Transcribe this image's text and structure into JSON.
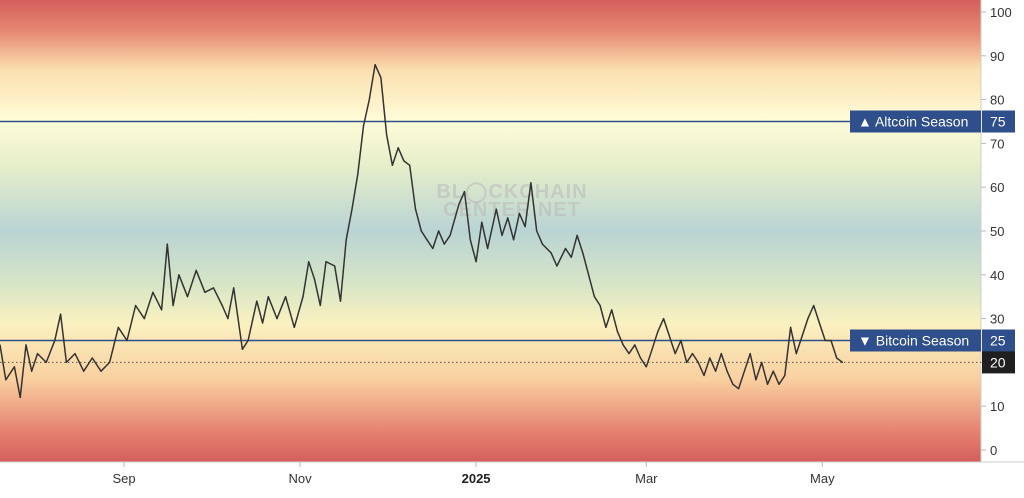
{
  "chart_data": {
    "type": "line",
    "title": "",
    "xlabel": "",
    "ylabel": "",
    "ylim": [
      0,
      100
    ],
    "y_ticks": [
      0,
      10,
      20,
      30,
      40,
      50,
      60,
      70,
      80,
      90,
      100
    ],
    "x_ticks": [
      {
        "label": "Sep",
        "bold": false
      },
      {
        "label": "Nov",
        "bold": false
      },
      {
        "label": "2025",
        "bold": true
      },
      {
        "label": "Mar",
        "bold": false
      },
      {
        "label": "May",
        "bold": false
      }
    ],
    "x_range": [
      "2024-07-20",
      "2025-06-25"
    ],
    "grid": false,
    "background": "rainbow gradient: red at 0 and 100, green near 45-50",
    "series": [
      {
        "color": "#333333",
        "points": [
          [
            "2024-07-20",
            24
          ],
          [
            "2024-07-22",
            16
          ],
          [
            "2024-07-25",
            19
          ],
          [
            "2024-07-27",
            12
          ],
          [
            "2024-07-29",
            24
          ],
          [
            "2024-07-31",
            18
          ],
          [
            "2024-08-02",
            22
          ],
          [
            "2024-08-05",
            20
          ],
          [
            "2024-08-08",
            25
          ],
          [
            "2024-08-10",
            31
          ],
          [
            "2024-08-12",
            20
          ],
          [
            "2024-08-15",
            22
          ],
          [
            "2024-08-18",
            18
          ],
          [
            "2024-08-21",
            21
          ],
          [
            "2024-08-24",
            18
          ],
          [
            "2024-08-27",
            20
          ],
          [
            "2024-08-30",
            28
          ],
          [
            "2024-09-02",
            25
          ],
          [
            "2024-09-05",
            33
          ],
          [
            "2024-09-08",
            30
          ],
          [
            "2024-09-11",
            36
          ],
          [
            "2024-09-14",
            32
          ],
          [
            "2024-09-16",
            47
          ],
          [
            "2024-09-18",
            33
          ],
          [
            "2024-09-20",
            40
          ],
          [
            "2024-09-23",
            35
          ],
          [
            "2024-09-26",
            41
          ],
          [
            "2024-09-29",
            36
          ],
          [
            "2024-10-02",
            37
          ],
          [
            "2024-10-05",
            33
          ],
          [
            "2024-10-07",
            30
          ],
          [
            "2024-10-09",
            37
          ],
          [
            "2024-10-12",
            23
          ],
          [
            "2024-10-14",
            25
          ],
          [
            "2024-10-17",
            34
          ],
          [
            "2024-10-19",
            29
          ],
          [
            "2024-10-21",
            35
          ],
          [
            "2024-10-24",
            30
          ],
          [
            "2024-10-27",
            35
          ],
          [
            "2024-10-30",
            28
          ],
          [
            "2024-11-02",
            35
          ],
          [
            "2024-11-04",
            43
          ],
          [
            "2024-11-06",
            39
          ],
          [
            "2024-11-08",
            33
          ],
          [
            "2024-11-10",
            43
          ],
          [
            "2024-11-13",
            42
          ],
          [
            "2024-11-15",
            34
          ],
          [
            "2024-11-17",
            48
          ],
          [
            "2024-11-19",
            55
          ],
          [
            "2024-11-21",
            63
          ],
          [
            "2024-11-23",
            74
          ],
          [
            "2024-11-25",
            80
          ],
          [
            "2024-11-27",
            88
          ],
          [
            "2024-11-29",
            85
          ],
          [
            "2024-12-01",
            72
          ],
          [
            "2024-12-03",
            65
          ],
          [
            "2024-12-05",
            69
          ],
          [
            "2024-12-07",
            66
          ],
          [
            "2024-12-09",
            65
          ],
          [
            "2024-12-11",
            55
          ],
          [
            "2024-12-13",
            50
          ],
          [
            "2024-12-15",
            48
          ],
          [
            "2024-12-17",
            46
          ],
          [
            "2024-12-19",
            50
          ],
          [
            "2024-12-21",
            47
          ],
          [
            "2024-12-23",
            49
          ],
          [
            "2024-12-26",
            56
          ],
          [
            "2024-12-28",
            59
          ],
          [
            "2024-12-30",
            48
          ],
          [
            "2025-01-01",
            43
          ],
          [
            "2025-01-03",
            52
          ],
          [
            "2025-01-05",
            46
          ],
          [
            "2025-01-08",
            55
          ],
          [
            "2025-01-10",
            49
          ],
          [
            "2025-01-12",
            53
          ],
          [
            "2025-01-14",
            48
          ],
          [
            "2025-01-16",
            54
          ],
          [
            "2025-01-18",
            51
          ],
          [
            "2025-01-20",
            61
          ],
          [
            "2025-01-22",
            50
          ],
          [
            "2025-01-24",
            47
          ],
          [
            "2025-01-27",
            45
          ],
          [
            "2025-01-29",
            42
          ],
          [
            "2025-02-01",
            46
          ],
          [
            "2025-02-03",
            44
          ],
          [
            "2025-02-05",
            49
          ],
          [
            "2025-02-07",
            45
          ],
          [
            "2025-02-09",
            40
          ],
          [
            "2025-02-11",
            35
          ],
          [
            "2025-02-13",
            33
          ],
          [
            "2025-02-15",
            28
          ],
          [
            "2025-02-17",
            32
          ],
          [
            "2025-02-19",
            27
          ],
          [
            "2025-02-21",
            24
          ],
          [
            "2025-02-23",
            22
          ],
          [
            "2025-02-25",
            24
          ],
          [
            "2025-02-27",
            21
          ],
          [
            "2025-03-01",
            19
          ],
          [
            "2025-03-03",
            23
          ],
          [
            "2025-03-05",
            27
          ],
          [
            "2025-03-07",
            30
          ],
          [
            "2025-03-09",
            26
          ],
          [
            "2025-03-11",
            22
          ],
          [
            "2025-03-13",
            25
          ],
          [
            "2025-03-15",
            20
          ],
          [
            "2025-03-17",
            22
          ],
          [
            "2025-03-19",
            20
          ],
          [
            "2025-03-21",
            17
          ],
          [
            "2025-03-23",
            21
          ],
          [
            "2025-03-25",
            18
          ],
          [
            "2025-03-27",
            22
          ],
          [
            "2025-03-29",
            18
          ],
          [
            "2025-03-31",
            15
          ],
          [
            "2025-04-02",
            14
          ],
          [
            "2025-04-04",
            18
          ],
          [
            "2025-04-06",
            22
          ],
          [
            "2025-04-08",
            16
          ],
          [
            "2025-04-10",
            20
          ],
          [
            "2025-04-12",
            15
          ],
          [
            "2025-04-14",
            18
          ],
          [
            "2025-04-16",
            15
          ],
          [
            "2025-04-18",
            17
          ],
          [
            "2025-04-20",
            28
          ],
          [
            "2025-04-22",
            22
          ],
          [
            "2025-04-24",
            26
          ],
          [
            "2025-04-26",
            30
          ],
          [
            "2025-04-28",
            33
          ],
          [
            "2025-04-30",
            29
          ],
          [
            "2025-05-02",
            25
          ],
          [
            "2025-05-04",
            25
          ],
          [
            "2025-05-06",
            21
          ],
          [
            "2025-05-08",
            20
          ]
        ]
      }
    ],
    "reference_lines": [
      {
        "value": 75,
        "label": "Altcoin Season",
        "marker": "▲",
        "value_label": "75",
        "color": "#2e4e8c"
      },
      {
        "value": 25,
        "label": "Bitcoin Season",
        "marker": "▼",
        "value_label": "25",
        "color": "#2e4e8c"
      }
    ],
    "last_value": {
      "value": 20,
      "label": "20"
    },
    "watermark": [
      "BL◯CKCHAIN",
      "CENTER.NET"
    ]
  }
}
